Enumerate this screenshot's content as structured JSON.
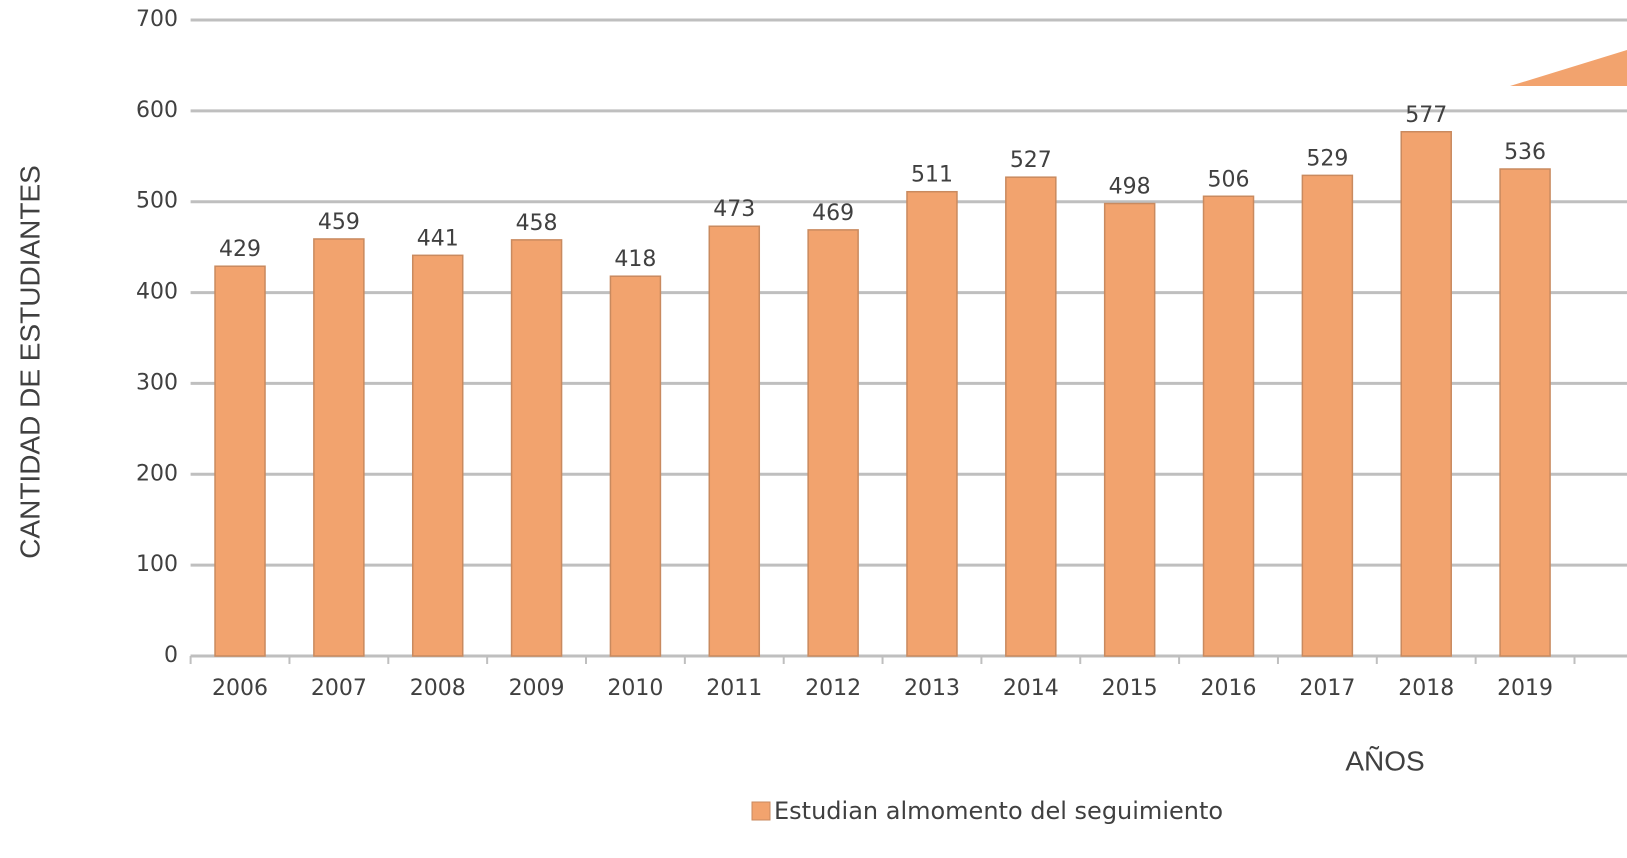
{
  "chart_data": {
    "type": "bar",
    "x_label": "AÑOS",
    "y_label": "CANTIDAD DE ESTUDIANTES",
    "categories": [
      "2006",
      "2007",
      "2008",
      "2009",
      "2010",
      "2011",
      "2012",
      "2013",
      "2014",
      "2015",
      "2016",
      "2017",
      "2018",
      "2019"
    ],
    "series": [
      {
        "name": "Estudian almomento del seguimiento",
        "color": "#f2a36e",
        "values": [
          429,
          459,
          441,
          458,
          418,
          473,
          469,
          511,
          527,
          498,
          506,
          529,
          577,
          536
        ]
      }
    ],
    "ylim": [
      0,
      700
    ],
    "yticks": [
      0,
      100,
      200,
      300,
      400,
      500,
      600,
      700
    ],
    "grid": true,
    "legend": "bottom"
  }
}
